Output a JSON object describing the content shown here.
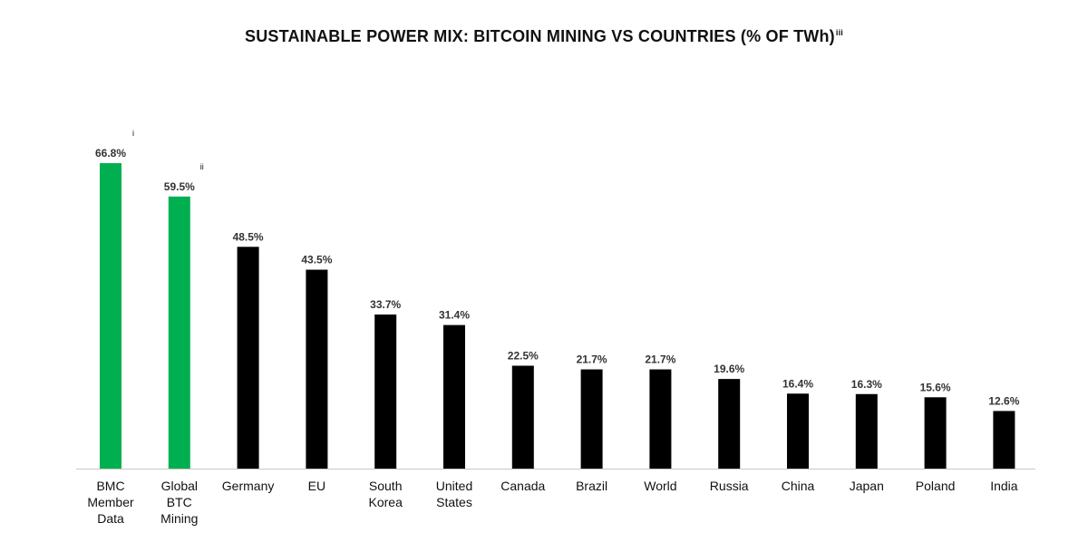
{
  "chart_data": {
    "type": "bar",
    "title": "SUSTAINABLE POWER MIX: BITCOIN MINING VS COUNTRIES (% OF TWh)",
    "title_note": "iii",
    "xlabel": "",
    "ylabel": "",
    "ylim": [
      0,
      70
    ],
    "grid": false,
    "colors": {
      "highlight": "#00b050",
      "default": "#000000"
    },
    "categories": [
      [
        "BMC",
        "Member",
        "Data"
      ],
      [
        "Global",
        "BTC",
        "Mining"
      ],
      [
        "Germany"
      ],
      [
        "EU"
      ],
      [
        "South",
        "Korea"
      ],
      [
        "United",
        "States"
      ],
      [
        "Canada"
      ],
      [
        "Brazil"
      ],
      [
        "World"
      ],
      [
        "Russia"
      ],
      [
        "China"
      ],
      [
        "Japan"
      ],
      [
        "Poland"
      ],
      [
        "India"
      ]
    ],
    "values": [
      66.8,
      59.5,
      48.5,
      43.5,
      33.7,
      31.4,
      22.5,
      21.7,
      21.7,
      19.6,
      16.4,
      16.3,
      15.6,
      12.6
    ],
    "data_labels": [
      "66.8%",
      "59.5%",
      "48.5%",
      "43.5%",
      "33.7%",
      "31.4%",
      "22.5%",
      "21.7%",
      "21.7%",
      "19.6%",
      "16.4%",
      "16.3%",
      "15.6%",
      "12.6%"
    ],
    "highlight": [
      true,
      true,
      false,
      false,
      false,
      false,
      false,
      false,
      false,
      false,
      false,
      false,
      false,
      false
    ],
    "notes": [
      "i",
      "ii",
      "",
      "",
      "",
      "",
      "",
      "",
      "",
      "",
      "",
      "",
      "",
      ""
    ]
  }
}
